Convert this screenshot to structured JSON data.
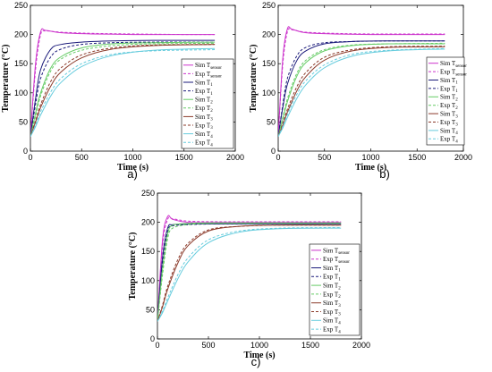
{
  "chart_data": [
    {
      "type": "line",
      "panel_label": "a)",
      "xlabel": "Time (s)",
      "ylabel": "Temperature (°C)",
      "xlim": [
        0,
        2000
      ],
      "ylim": [
        0,
        250
      ],
      "xticks": [
        "0",
        "500",
        "1000",
        "1500",
        "2000"
      ],
      "yticks": [
        "0",
        "50",
        "100",
        "150",
        "200",
        "250"
      ],
      "legend_position": "right",
      "series": [
        {
          "name": "Sim T",
          "sub": "sensor",
          "color": "#cc33cc",
          "dash": false,
          "x": [
            0,
            50,
            100,
            150,
            300,
            600,
            1000,
            1500,
            1800
          ],
          "y": [
            25,
            150,
            205,
            207,
            203,
            201,
            200,
            200,
            200
          ]
        },
        {
          "name": "Exp T",
          "sub": "sensor",
          "color": "#cc33cc",
          "dash": true,
          "x": [
            0,
            50,
            100,
            150,
            300,
            600,
            1000,
            1500,
            1800
          ],
          "y": [
            25,
            140,
            200,
            206,
            204,
            202,
            201,
            200,
            200
          ]
        },
        {
          "name": "Sim T",
          "sub": "1",
          "color": "#1a1a7a",
          "dash": false,
          "x": [
            0,
            50,
            100,
            200,
            300,
            500,
            800,
            1200,
            1800
          ],
          "y": [
            25,
            90,
            140,
            175,
            183,
            187,
            189,
            190,
            190
          ]
        },
        {
          "name": "Exp T",
          "sub": "1",
          "color": "#1a1a7a",
          "dash": true,
          "x": [
            0,
            50,
            100,
            200,
            300,
            500,
            800,
            1200,
            1800
          ],
          "y": [
            25,
            80,
            125,
            162,
            175,
            183,
            186,
            187,
            187
          ]
        },
        {
          "name": "Sim T",
          "sub": "2",
          "color": "#66cc66",
          "dash": false,
          "x": [
            0,
            50,
            100,
            200,
            300,
            500,
            800,
            1200,
            1800
          ],
          "y": [
            25,
            65,
            100,
            143,
            162,
            177,
            184,
            186,
            187
          ]
        },
        {
          "name": "Exp T",
          "sub": "2",
          "color": "#66cc66",
          "dash": true,
          "x": [
            0,
            50,
            100,
            200,
            300,
            500,
            800,
            1200,
            1800
          ],
          "y": [
            25,
            60,
            95,
            138,
            158,
            173,
            181,
            184,
            185
          ]
        },
        {
          "name": "Sim T",
          "sub": "3",
          "color": "#8b3a2a",
          "dash": false,
          "x": [
            0,
            50,
            100,
            200,
            300,
            500,
            800,
            1200,
            1800
          ],
          "y": [
            25,
            50,
            75,
            112,
            136,
            160,
            175,
            181,
            183
          ]
        },
        {
          "name": "Exp T",
          "sub": "3",
          "color": "#8b3a2a",
          "dash": true,
          "x": [
            0,
            50,
            100,
            200,
            300,
            500,
            800,
            1200,
            1800
          ],
          "y": [
            25,
            52,
            80,
            120,
            143,
            165,
            177,
            182,
            183
          ]
        },
        {
          "name": "Sim T",
          "sub": "4",
          "color": "#66ccdd",
          "dash": false,
          "x": [
            0,
            50,
            100,
            200,
            300,
            500,
            800,
            1200,
            1800
          ],
          "y": [
            25,
            42,
            62,
            95,
            118,
            145,
            164,
            173,
            176
          ]
        },
        {
          "name": "Exp T",
          "sub": "4",
          "color": "#66ccdd",
          "dash": true,
          "x": [
            0,
            50,
            100,
            200,
            300,
            500,
            800,
            1200,
            1800
          ],
          "y": [
            25,
            45,
            68,
            102,
            125,
            150,
            166,
            172,
            174
          ]
        }
      ]
    },
    {
      "type": "line",
      "panel_label": "b)",
      "xlabel": "Time (s)",
      "ylabel": "Temperature (°C)",
      "xlim": [
        0,
        2000
      ],
      "ylim": [
        0,
        250
      ],
      "xticks": [
        "0",
        "500",
        "1000",
        "1500",
        "2000"
      ],
      "yticks": [
        "0",
        "50",
        "100",
        "150",
        "200",
        "250"
      ],
      "legend_position": "right",
      "series": [
        {
          "name": "Sim T",
          "sub": "sensor",
          "color": "#cc33cc",
          "dash": false,
          "x": [
            0,
            50,
            100,
            150,
            300,
            600,
            1000,
            1500,
            1800
          ],
          "y": [
            25,
            160,
            210,
            209,
            203,
            201,
            200,
            200,
            200
          ]
        },
        {
          "name": "Exp T",
          "sub": "sensor",
          "color": "#cc33cc",
          "dash": true,
          "x": [
            0,
            50,
            100,
            150,
            300,
            600,
            1000,
            1500,
            1800
          ],
          "y": [
            25,
            150,
            205,
            208,
            204,
            202,
            201,
            201,
            201
          ]
        },
        {
          "name": "Sim T",
          "sub": "1",
          "color": "#1a1a7a",
          "dash": false,
          "x": [
            0,
            50,
            100,
            200,
            300,
            500,
            800,
            1200,
            1800
          ],
          "y": [
            25,
            75,
            115,
            155,
            172,
            184,
            188,
            189,
            189
          ]
        },
        {
          "name": "Exp T",
          "sub": "1",
          "color": "#1a1a7a",
          "dash": true,
          "x": [
            0,
            50,
            100,
            200,
            300,
            500,
            800,
            1200,
            1800
          ],
          "y": [
            25,
            80,
            125,
            163,
            178,
            186,
            188,
            189,
            189
          ]
        },
        {
          "name": "Sim T",
          "sub": "2",
          "color": "#66cc66",
          "dash": false,
          "x": [
            0,
            50,
            100,
            200,
            300,
            500,
            800,
            1200,
            1800
          ],
          "y": [
            25,
            55,
            85,
            128,
            152,
            172,
            181,
            184,
            184
          ]
        },
        {
          "name": "Exp T",
          "sub": "2",
          "color": "#66cc66",
          "dash": true,
          "x": [
            0,
            50,
            100,
            200,
            300,
            500,
            800,
            1200,
            1800
          ],
          "y": [
            25,
            58,
            90,
            133,
            156,
            174,
            182,
            184,
            185
          ]
        },
        {
          "name": "Sim T",
          "sub": "3",
          "color": "#8b3a2a",
          "dash": false,
          "x": [
            0,
            50,
            100,
            200,
            300,
            500,
            800,
            1200,
            1800
          ],
          "y": [
            25,
            45,
            67,
            103,
            128,
            156,
            172,
            178,
            179
          ]
        },
        {
          "name": "Exp T",
          "sub": "3",
          "color": "#8b3a2a",
          "dash": true,
          "x": [
            0,
            50,
            100,
            200,
            300,
            500,
            800,
            1200,
            1800
          ],
          "y": [
            25,
            48,
            72,
            110,
            135,
            161,
            174,
            179,
            180
          ]
        },
        {
          "name": "Sim T",
          "sub": "4",
          "color": "#66ccdd",
          "dash": false,
          "x": [
            0,
            50,
            100,
            200,
            300,
            500,
            800,
            1200,
            1800
          ],
          "y": [
            25,
            40,
            58,
            90,
            114,
            143,
            163,
            172,
            175
          ]
        },
        {
          "name": "Exp T",
          "sub": "4",
          "color": "#66ccdd",
          "dash": true,
          "x": [
            0,
            50,
            100,
            200,
            300,
            500,
            800,
            1200,
            1800
          ],
          "y": [
            25,
            43,
            63,
            97,
            121,
            148,
            166,
            173,
            176
          ]
        }
      ]
    },
    {
      "type": "line",
      "panel_label": "c)",
      "xlabel": "Time (s)",
      "ylabel": "Temperature (°C)",
      "xlim": [
        0,
        2000
      ],
      "ylim": [
        0,
        250
      ],
      "xticks": [
        "0",
        "500",
        "1000",
        "1500",
        "2000"
      ],
      "yticks": [
        "0",
        "50",
        "100",
        "150",
        "200",
        "250"
      ],
      "legend_position": "right",
      "series": [
        {
          "name": "Sim T",
          "sub": "sensor",
          "color": "#cc33cc",
          "dash": false,
          "x": [
            0,
            50,
            100,
            150,
            300,
            600,
            1000,
            1500,
            1800
          ],
          "y": [
            30,
            170,
            210,
            205,
            200,
            200,
            200,
            200,
            200
          ]
        },
        {
          "name": "Exp T",
          "sub": "sensor",
          "color": "#cc33cc",
          "dash": true,
          "x": [
            0,
            50,
            100,
            150,
            300,
            600,
            1000,
            1500,
            1800
          ],
          "y": [
            30,
            160,
            205,
            206,
            202,
            201,
            201,
            201,
            201
          ]
        },
        {
          "name": "Sim T",
          "sub": "1",
          "color": "#1a1a7a",
          "dash": false,
          "x": [
            0,
            50,
            100,
            150,
            300,
            500,
            800,
            1200,
            1800
          ],
          "y": [
            30,
            140,
            190,
            196,
            197,
            197,
            197,
            197,
            197
          ]
        },
        {
          "name": "Exp T",
          "sub": "1",
          "color": "#1a1a7a",
          "dash": true,
          "x": [
            0,
            50,
            100,
            150,
            300,
            500,
            800,
            1200,
            1800
          ],
          "y": [
            30,
            130,
            185,
            194,
            196,
            197,
            197,
            197,
            197
          ]
        },
        {
          "name": "Sim T",
          "sub": "2",
          "color": "#66cc66",
          "dash": false,
          "x": [
            0,
            50,
            100,
            150,
            300,
            500,
            800,
            1200,
            1800
          ],
          "y": [
            30,
            120,
            180,
            195,
            198,
            199,
            199,
            199,
            199
          ]
        },
        {
          "name": "Exp T",
          "sub": "2",
          "color": "#66cc66",
          "dash": true,
          "x": [
            0,
            50,
            100,
            150,
            300,
            500,
            800,
            1200,
            1800
          ],
          "y": [
            30,
            110,
            172,
            190,
            196,
            198,
            198,
            198,
            198
          ]
        },
        {
          "name": "Sim T",
          "sub": "3",
          "color": "#8b3a2a",
          "dash": false,
          "x": [
            0,
            50,
            100,
            200,
            300,
            500,
            800,
            1200,
            1800
          ],
          "y": [
            30,
            55,
            85,
            130,
            160,
            185,
            193,
            195,
            195
          ]
        },
        {
          "name": "Exp T",
          "sub": "3",
          "color": "#8b3a2a",
          "dash": true,
          "x": [
            0,
            50,
            100,
            200,
            300,
            500,
            800,
            1200,
            1800
          ],
          "y": [
            30,
            58,
            90,
            136,
            164,
            187,
            193,
            195,
            195
          ]
        },
        {
          "name": "Sim T",
          "sub": "4",
          "color": "#66ccdd",
          "dash": false,
          "x": [
            0,
            50,
            100,
            200,
            300,
            500,
            800,
            1200,
            1800
          ],
          "y": [
            30,
            45,
            65,
            103,
            132,
            165,
            183,
            189,
            190
          ]
        },
        {
          "name": "Exp T",
          "sub": "4",
          "color": "#66ccdd",
          "dash": true,
          "x": [
            0,
            50,
            100,
            200,
            300,
            500,
            800,
            1200,
            1800
          ],
          "y": [
            30,
            48,
            70,
            110,
            139,
            170,
            185,
            190,
            191
          ]
        }
      ]
    }
  ]
}
